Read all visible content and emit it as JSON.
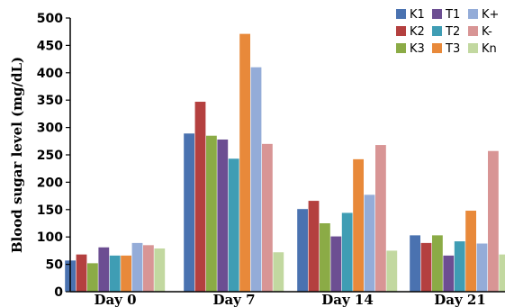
{
  "chart_data": {
    "type": "bar",
    "title": "",
    "xlabel": "",
    "ylabel": "Blood sugar level (mg/dL)",
    "ylim": [
      0,
      500
    ],
    "yticks": [
      0,
      50,
      100,
      150,
      200,
      250,
      300,
      350,
      400,
      450,
      500
    ],
    "categories": [
      "Day 0",
      "Day 7",
      "Day 14",
      "Day 21"
    ],
    "grid": false,
    "legend_position": "top-right",
    "series": [
      {
        "name": "K1",
        "color": "#4a72b0",
        "values": [
          57,
          289,
          151,
          103
        ]
      },
      {
        "name": "K2",
        "color": "#b4403f",
        "values": [
          68,
          347,
          166,
          89
        ]
      },
      {
        "name": "K3",
        "color": "#8bab46",
        "values": [
          52,
          285,
          125,
          103
        ]
      },
      {
        "name": "T1",
        "color": "#6c4e92",
        "values": [
          81,
          278,
          101,
          66
        ]
      },
      {
        "name": "T2",
        "color": "#3f9db4",
        "values": [
          66,
          243,
          144,
          92
        ]
      },
      {
        "name": "T3",
        "color": "#e8893a",
        "values": [
          66,
          471,
          242,
          148
        ]
      },
      {
        "name": "K+",
        "color": "#94acd8",
        "values": [
          89,
          410,
          177,
          88
        ]
      },
      {
        "name": "K-",
        "color": "#d89595",
        "values": [
          85,
          270,
          268,
          257
        ]
      },
      {
        "name": "Kn",
        "color": "#c2d8a0",
        "values": [
          79,
          72,
          75,
          68
        ]
      }
    ]
  }
}
